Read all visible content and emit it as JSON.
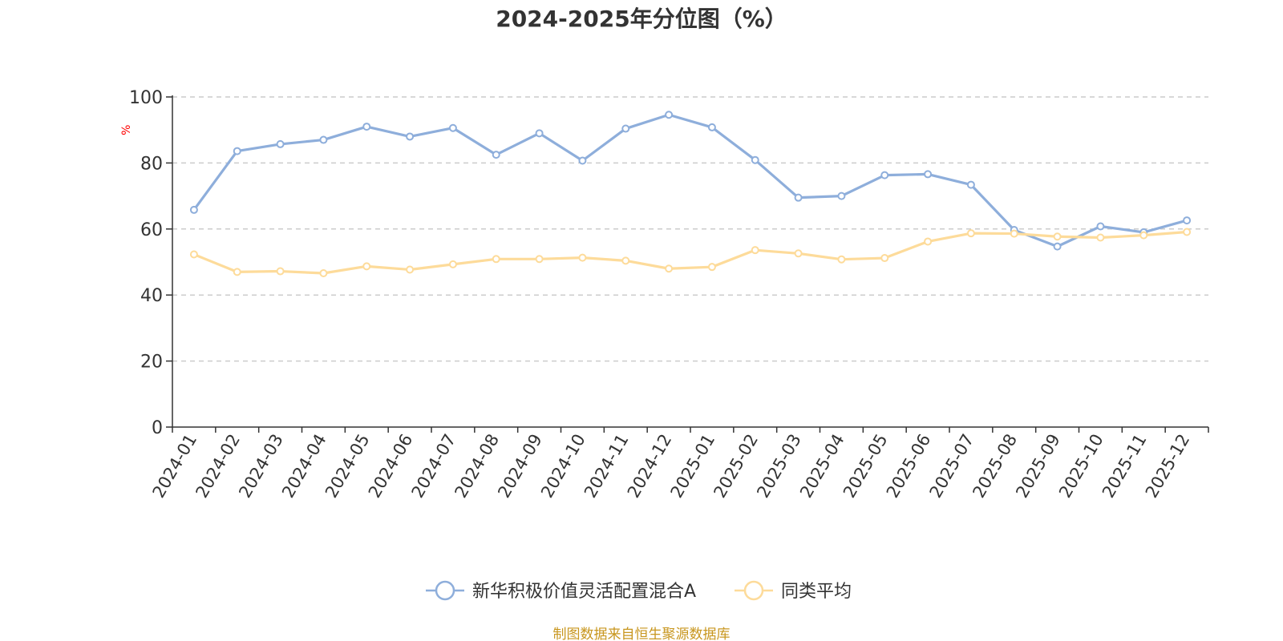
{
  "chart_data": {
    "type": "line",
    "title": "2024-2025年分位图（%）",
    "ylabel": "%",
    "ylabel_color": "#ff0000",
    "ylim": [
      0,
      100
    ],
    "yticks": [
      0,
      20,
      40,
      60,
      80,
      100
    ],
    "grid": true,
    "legend_position": "bottom-center",
    "categories": [
      "2024-01",
      "2024-02",
      "2024-03",
      "2024-04",
      "2024-05",
      "2024-06",
      "2024-07",
      "2024-08",
      "2024-09",
      "2024-10",
      "2024-11",
      "2024-12",
      "2025-01",
      "2025-02",
      "2025-03",
      "2025-04",
      "2025-05",
      "2025-06",
      "2025-07",
      "2025-08",
      "2025-09",
      "2025-10",
      "2025-11",
      "2025-12"
    ],
    "series": [
      {
        "name": "新华积极价值灵活配置混合A",
        "color": "#8eaedb",
        "values": [
          65.8,
          83.6,
          85.7,
          87.0,
          91.0,
          88.0,
          90.6,
          82.5,
          89.0,
          80.7,
          90.4,
          94.6,
          90.8,
          80.9,
          69.5,
          70.0,
          76.3,
          76.6,
          73.4,
          59.7,
          54.7,
          60.8,
          59.0,
          62.6
        ]
      },
      {
        "name": "同类平均",
        "color": "#fddb9a",
        "values": [
          52.3,
          47.0,
          47.2,
          46.6,
          48.7,
          47.7,
          49.3,
          50.9,
          50.9,
          51.3,
          50.4,
          48.0,
          48.5,
          53.6,
          52.6,
          50.8,
          51.2,
          56.2,
          58.7,
          58.6,
          57.7,
          57.4,
          58.1,
          59.1
        ]
      }
    ]
  },
  "footer": {
    "source_text": "制图数据来自恒生聚源数据库",
    "color": "#c8961e"
  }
}
